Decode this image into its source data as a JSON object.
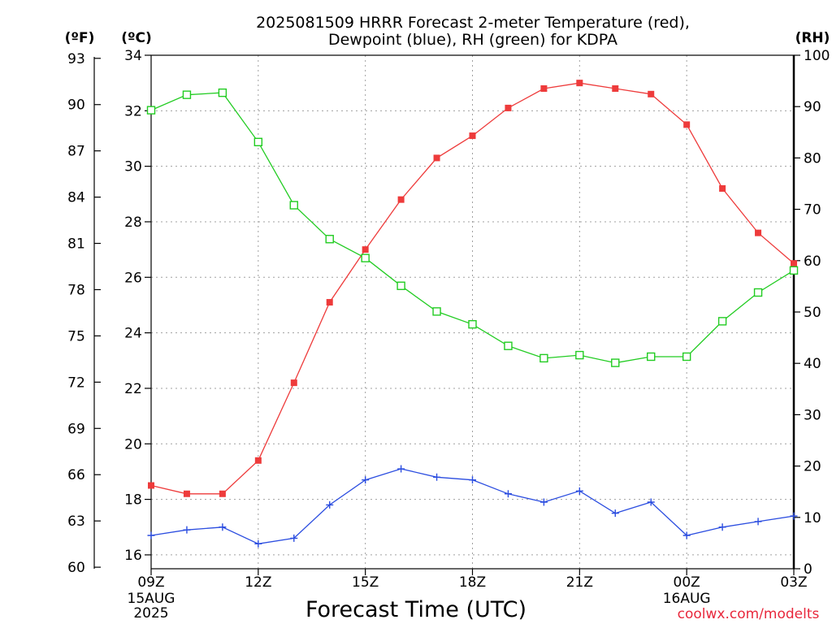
{
  "chart_data": {
    "type": "line",
    "title_lines": [
      "2025081509 HRRR Forecast 2-meter Temperature (red),",
      "Dewpoint (blue), RH (green) for KDPA"
    ],
    "xlabel": "Forecast Time (UTC)",
    "units": {
      "fahrenheit": "(ºF)",
      "celsius": "(ºC)",
      "rh": "(RH)"
    },
    "credit": "coolwx.com/modelts",
    "x": [
      "09Z",
      "10Z",
      "11Z",
      "12Z",
      "13Z",
      "14Z",
      "15Z",
      "16Z",
      "17Z",
      "18Z",
      "19Z",
      "20Z",
      "21Z",
      "22Z",
      "23Z",
      "00Z",
      "01Z",
      "02Z",
      "03Z"
    ],
    "x_ticks": [
      {
        "label": "09Z",
        "sub": [
          "15AUG",
          "2025"
        ],
        "index": 0
      },
      {
        "label": "12Z",
        "sub": [],
        "index": 3
      },
      {
        "label": "15Z",
        "sub": [],
        "index": 6
      },
      {
        "label": "18Z",
        "sub": [],
        "index": 9
      },
      {
        "label": "21Z",
        "sub": [],
        "index": 12
      },
      {
        "label": "00Z",
        "sub": [
          "16AUG"
        ],
        "index": 15
      },
      {
        "label": "03Z",
        "sub": [],
        "index": 18
      }
    ],
    "axes": {
      "celsius": {
        "min": 15.5,
        "max": 34,
        "ticks": [
          "16",
          "18",
          "20",
          "22",
          "24",
          "26",
          "28",
          "30",
          "32",
          "34"
        ]
      },
      "fahrenheit": {
        "ticks": [
          "60",
          "63",
          "66",
          "69",
          "72",
          "75",
          "78",
          "81",
          "84",
          "87",
          "90",
          "93"
        ]
      },
      "rh": {
        "min": 0,
        "max": 100,
        "ticks": [
          "0",
          "10",
          "20",
          "30",
          "40",
          "50",
          "60",
          "70",
          "80",
          "90",
          "100"
        ]
      }
    },
    "grid": true,
    "series": [
      {
        "name": "Temperature",
        "units": "C",
        "color": "#ee3b3b",
        "marker": "filled-square",
        "values": [
          18.5,
          18.2,
          18.2,
          19.4,
          22.2,
          25.1,
          27.0,
          28.8,
          30.3,
          31.1,
          32.1,
          32.8,
          33.0,
          32.8,
          32.6,
          31.5,
          29.2,
          27.6,
          26.5
        ]
      },
      {
        "name": "Dewpoint",
        "units": "C",
        "color": "#2b4de0",
        "marker": "plus",
        "values": [
          16.7,
          16.9,
          17.0,
          16.4,
          16.6,
          17.8,
          18.7,
          19.1,
          18.8,
          18.7,
          18.2,
          17.9,
          18.3,
          17.5,
          17.9,
          16.7,
          17.0,
          17.2,
          17.4
        ]
      },
      {
        "name": "RH",
        "units": "%",
        "color": "#22cc22",
        "marker": "open-square",
        "values": [
          89.3,
          92.3,
          92.7,
          83.1,
          70.8,
          64.2,
          60.5,
          55.1,
          50.1,
          47.6,
          43.4,
          41.0,
          41.6,
          40.1,
          41.3,
          41.3,
          48.2,
          53.8,
          58.1
        ]
      }
    ]
  }
}
